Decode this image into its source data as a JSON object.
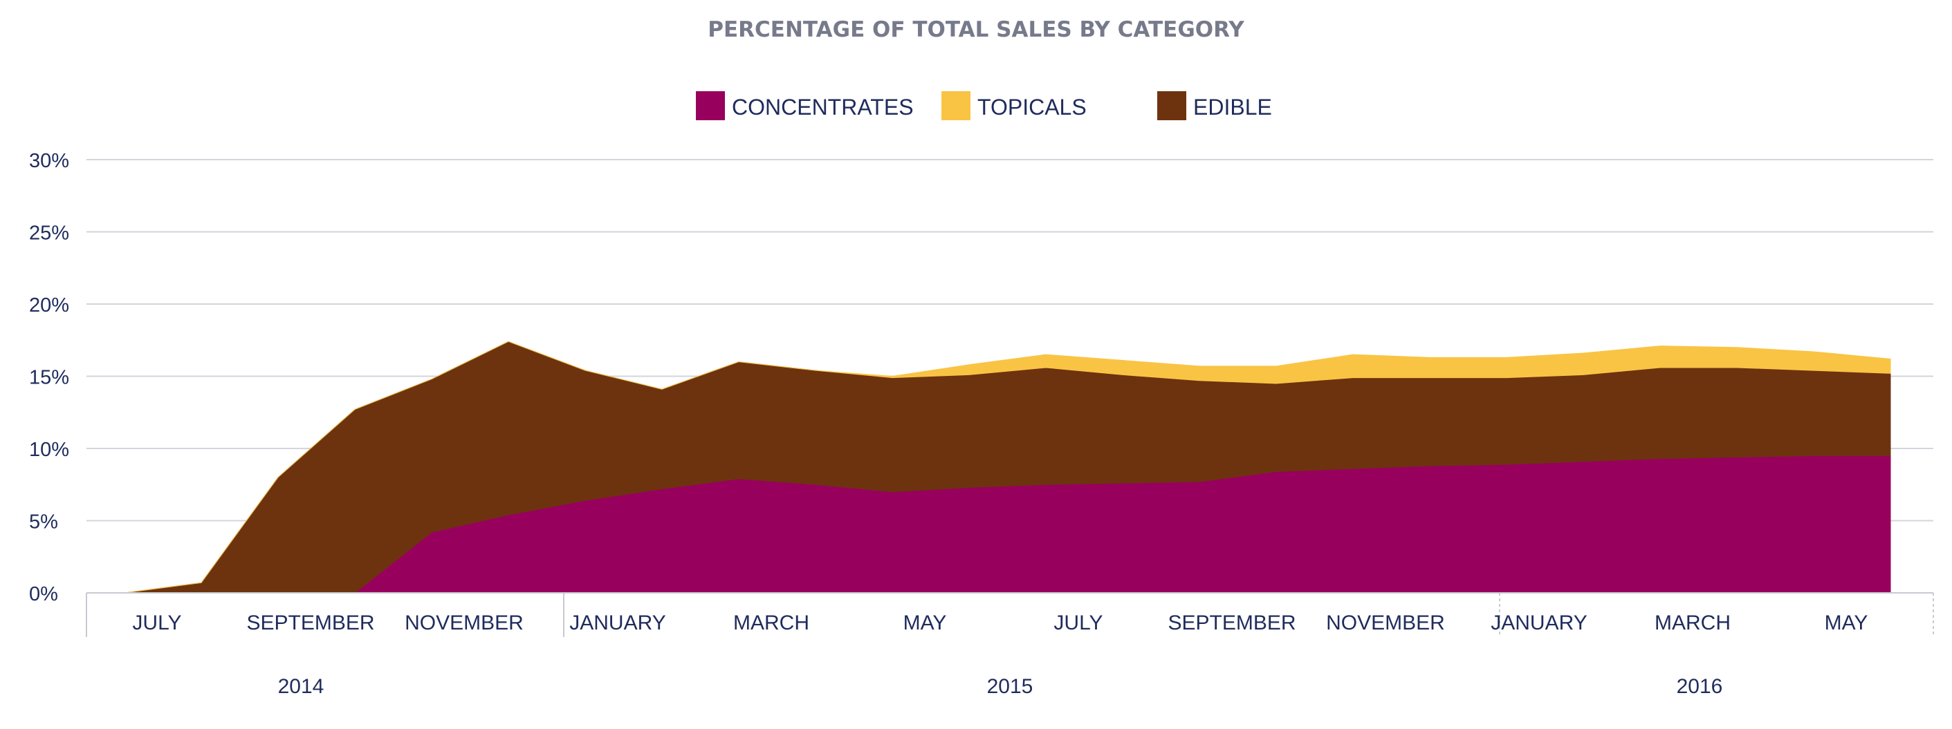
{
  "chart_data": {
    "type": "area",
    "stacked": true,
    "title": "PERCENTAGE OF TOTAL SALES BY CATEGORY",
    "legend_position": "top-center",
    "grid": true,
    "x": [
      "2014-07",
      "2014-08",
      "2014-09",
      "2014-10",
      "2014-11",
      "2014-12",
      "2015-01",
      "2015-02",
      "2015-03",
      "2015-04",
      "2015-05",
      "2015-06",
      "2015-07",
      "2015-08",
      "2015-09",
      "2015-10",
      "2015-11",
      "2015-12",
      "2016-01",
      "2016-02",
      "2016-03",
      "2016-04",
      "2016-05",
      "2016-06"
    ],
    "x_tick_labels": [
      "JULY",
      "SEPTEMBER",
      "NOVEMBER",
      "JANUARY",
      "MARCH",
      "MAY",
      "JULY",
      "SEPTEMBER",
      "NOVEMBER",
      "JANUARY",
      "MARCH",
      "MAY"
    ],
    "year_labels": [
      "2014",
      "2015",
      "2016"
    ],
    "y_tick_labels": [
      "0%",
      "5%",
      "10%",
      "15%",
      "20%",
      "25%",
      "30%"
    ],
    "ylim": [
      0,
      30
    ],
    "series": [
      {
        "name": "CONCENTRATES",
        "color": "#98005E",
        "values": [
          0,
          0,
          0,
          0,
          4.2,
          5.4,
          6.4,
          7.2,
          7.9,
          7.5,
          7.0,
          7.3,
          7.5,
          7.6,
          7.7,
          8.4,
          8.6,
          8.8,
          8.9,
          9.1,
          9.3,
          9.4,
          9.5,
          9.5
        ]
      },
      {
        "name": "EDIBLE",
        "color": "#6D330F",
        "values": [
          0,
          0.7,
          8.0,
          12.7,
          10.6,
          12.0,
          9.0,
          6.9,
          8.1,
          7.9,
          7.9,
          7.8,
          8.1,
          7.5,
          7.0,
          6.1,
          6.3,
          6.1,
          6.0,
          6.0,
          6.3,
          6.2,
          5.9,
          5.7
        ]
      },
      {
        "name": "TOPICALS",
        "color": "#F9C444",
        "values": [
          0,
          0,
          0,
          0,
          0,
          0,
          0,
          0,
          0,
          0,
          0.1,
          0.7,
          0.9,
          1.0,
          1.0,
          1.2,
          1.6,
          1.4,
          1.4,
          1.5,
          1.5,
          1.4,
          1.3,
          1.0
        ]
      }
    ]
  }
}
